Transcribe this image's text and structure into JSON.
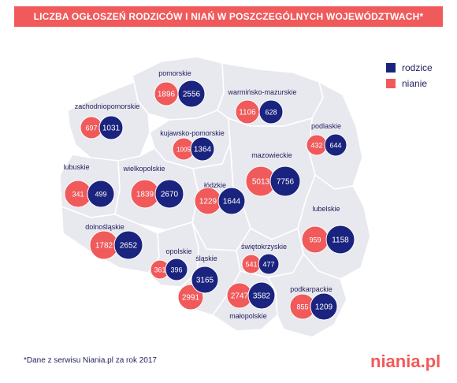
{
  "title": "LICZBA OGŁOSZEŃ RODZICÓW I NIAŃ W POSZCZEGÓLNYCH WOJEWÓDZTWACH*",
  "legend": {
    "parents_label": "rodzice",
    "nannies_label": "nianie",
    "parents_color": "#1a237e",
    "nannies_color": "#f05a5b"
  },
  "footnote": "*Dane z serwisu Niania.pl za rok 2017",
  "logo": "niania.pl",
  "colors": {
    "map_fill": "#e8e8ef",
    "border": "#ffffff",
    "label_text": "#1f1f5c"
  },
  "regions": [
    {
      "name": "pomorskie",
      "nianie": "1896",
      "rodzice": "2556"
    },
    {
      "name": "zachodniopomorskie",
      "nianie": "697",
      "rodzice": "1031"
    },
    {
      "name": "warmińsko-mazurskie",
      "nianie": "1106",
      "rodzice": "628"
    },
    {
      "name": "kujawsko-pomorskie",
      "nianie": "1005",
      "rodzice": "1364"
    },
    {
      "name": "podlaskie",
      "nianie": "432",
      "rodzice": "644"
    },
    {
      "name": "lubuskie",
      "nianie": "341",
      "rodzice": "499"
    },
    {
      "name": "wielkopolskie",
      "nianie": "1839",
      "rodzice": "2670"
    },
    {
      "name": "mazowieckie",
      "nianie": "5013",
      "rodzice": "7756"
    },
    {
      "name": "łódzkie",
      "nianie": "1229",
      "rodzice": "1644"
    },
    {
      "name": "lubelskie",
      "nianie": "959",
      "rodzice": "1158"
    },
    {
      "name": "dolnośląskie",
      "nianie": "1782",
      "rodzice": "2652"
    },
    {
      "name": "opolskie",
      "nianie": "361",
      "rodzice": "396"
    },
    {
      "name": "świętokrzyskie",
      "nianie": "541",
      "rodzice": "477"
    },
    {
      "name": "śląskie",
      "nianie": "2991",
      "rodzice": "3165"
    },
    {
      "name": "małopolskie",
      "nianie": "2747",
      "rodzice": "3582"
    },
    {
      "name": "podkarpackie",
      "nianie": "855",
      "rodzice": "1209"
    }
  ]
}
